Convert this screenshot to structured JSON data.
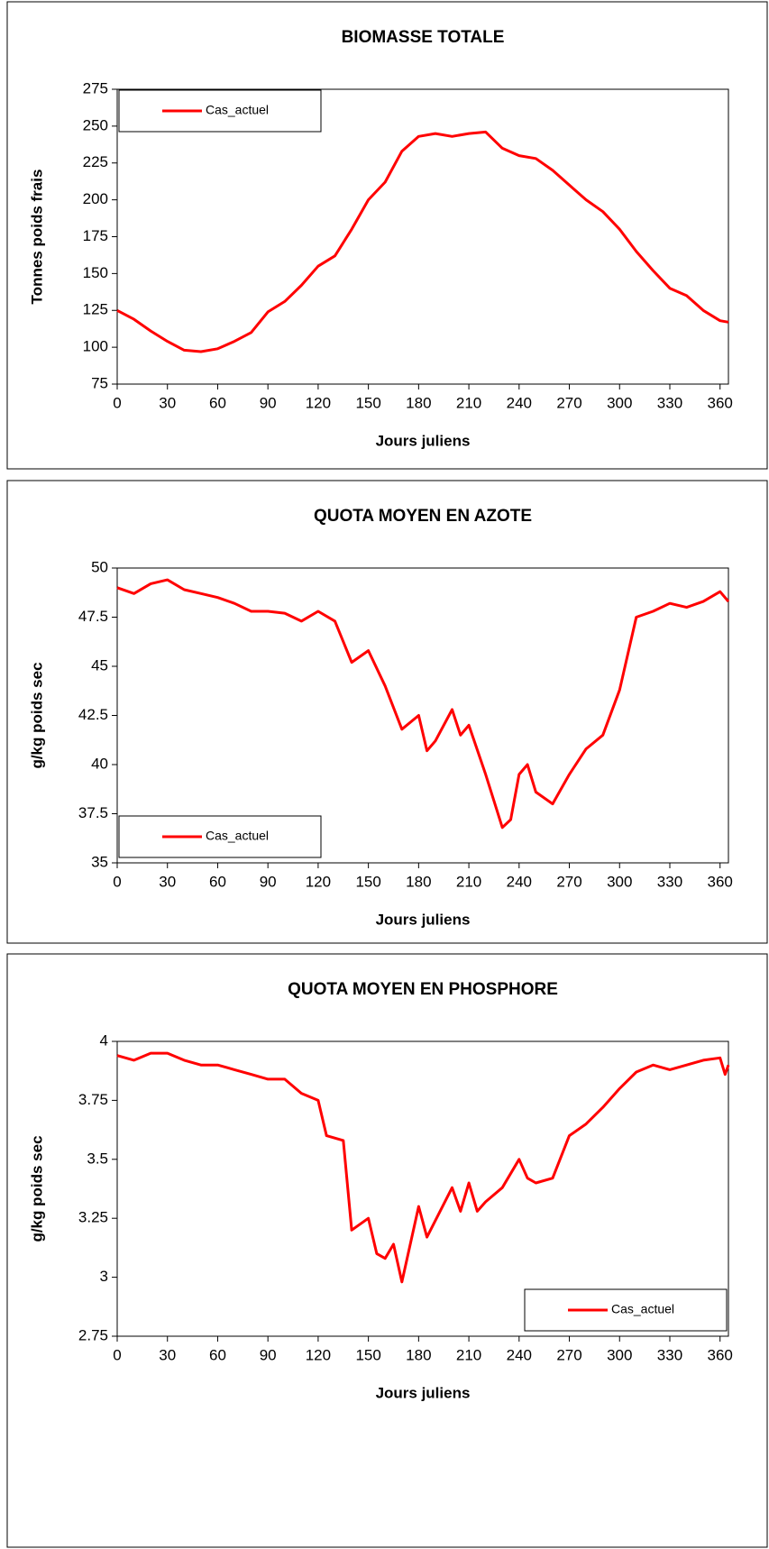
{
  "chart_data": [
    {
      "type": "line",
      "title": "BIOMASSE TOTALE",
      "xlabel": "Jours juliens",
      "ylabel": "Tonnes poids frais",
      "x": [
        0,
        10,
        20,
        30,
        40,
        50,
        60,
        70,
        80,
        90,
        100,
        110,
        120,
        130,
        140,
        150,
        160,
        170,
        180,
        190,
        200,
        210,
        220,
        230,
        240,
        250,
        260,
        270,
        280,
        290,
        300,
        310,
        320,
        330,
        340,
        350,
        360,
        365
      ],
      "series": [
        {
          "name": "Cas_actuel",
          "color": "#ff0000",
          "values": [
            125,
            119,
            111,
            104,
            98,
            97,
            99,
            104,
            110,
            124,
            131,
            142,
            155,
            162,
            180,
            200,
            212,
            233,
            243,
            245,
            243,
            245,
            246,
            235,
            230,
            228,
            220,
            210,
            200,
            192,
            180,
            165,
            152,
            140,
            135,
            125,
            118,
            117
          ]
        }
      ],
      "xlim": [
        0,
        365
      ],
      "xticks": [
        0,
        30,
        60,
        90,
        120,
        150,
        180,
        210,
        240,
        270,
        300,
        330,
        360
      ],
      "ylim": [
        75,
        275
      ],
      "yticks": [
        75,
        100,
        125,
        150,
        175,
        200,
        225,
        250,
        275
      ],
      "legend": "top-left"
    },
    {
      "type": "line",
      "title": "QUOTA MOYEN EN AZOTE",
      "xlabel": "Jours juliens",
      "ylabel": "g/kg poids sec",
      "x": [
        0,
        10,
        20,
        30,
        40,
        50,
        60,
        70,
        80,
        90,
        100,
        110,
        120,
        130,
        140,
        150,
        160,
        170,
        180,
        185,
        190,
        200,
        205,
        210,
        220,
        230,
        235,
        240,
        245,
        250,
        260,
        270,
        280,
        290,
        300,
        310,
        320,
        330,
        340,
        350,
        360,
        365
      ],
      "series": [
        {
          "name": "Cas_actuel",
          "color": "#ff0000",
          "values": [
            49,
            48.7,
            49.2,
            49.4,
            48.9,
            48.7,
            48.5,
            48.2,
            47.8,
            47.8,
            47.7,
            47.3,
            47.8,
            47.3,
            45.2,
            45.8,
            44,
            41.8,
            42.5,
            40.7,
            41.2,
            42.8,
            41.5,
            42,
            39.5,
            36.8,
            37.2,
            39.5,
            40,
            38.6,
            38,
            39.5,
            40.8,
            41.5,
            43.8,
            47.5,
            47.8,
            48.2,
            48,
            48.3,
            48.8,
            48.3
          ]
        }
      ],
      "xlim": [
        0,
        365
      ],
      "xticks": [
        0,
        30,
        60,
        90,
        120,
        150,
        180,
        210,
        240,
        270,
        300,
        330,
        360
      ],
      "ylim": [
        35,
        50
      ],
      "yticks": [
        35,
        37.5,
        40,
        42.5,
        45,
        47.5,
        50
      ],
      "legend": "bottom-left"
    },
    {
      "type": "line",
      "title": "QUOTA MOYEN EN PHOSPHORE",
      "xlabel": "Jours juliens",
      "ylabel": "g/kg poids sec",
      "x": [
        0,
        10,
        20,
        30,
        40,
        50,
        60,
        70,
        80,
        90,
        100,
        110,
        120,
        125,
        135,
        140,
        150,
        155,
        160,
        165,
        170,
        180,
        185,
        200,
        205,
        210,
        215,
        220,
        230,
        240,
        245,
        250,
        260,
        270,
        280,
        290,
        300,
        310,
        320,
        330,
        340,
        350,
        360,
        363,
        365
      ],
      "series": [
        {
          "name": "Cas_actuel",
          "color": "#ff0000",
          "values": [
            3.94,
            3.92,
            3.95,
            3.95,
            3.92,
            3.9,
            3.9,
            3.88,
            3.86,
            3.84,
            3.84,
            3.78,
            3.75,
            3.6,
            3.58,
            3.2,
            3.25,
            3.1,
            3.08,
            3.14,
            2.98,
            3.3,
            3.17,
            3.38,
            3.28,
            3.4,
            3.28,
            3.32,
            3.38,
            3.5,
            3.42,
            3.4,
            3.42,
            3.6,
            3.65,
            3.72,
            3.8,
            3.87,
            3.9,
            3.88,
            3.9,
            3.92,
            3.93,
            3.86,
            3.9
          ]
        }
      ],
      "xlim": [
        0,
        365
      ],
      "xticks": [
        0,
        30,
        60,
        90,
        120,
        150,
        180,
        210,
        240,
        270,
        300,
        330,
        360
      ],
      "ylim": [
        2.75,
        4
      ],
      "yticks": [
        2.75,
        3,
        3.25,
        3.5,
        3.75,
        4
      ],
      "legend": "bottom-right"
    }
  ]
}
